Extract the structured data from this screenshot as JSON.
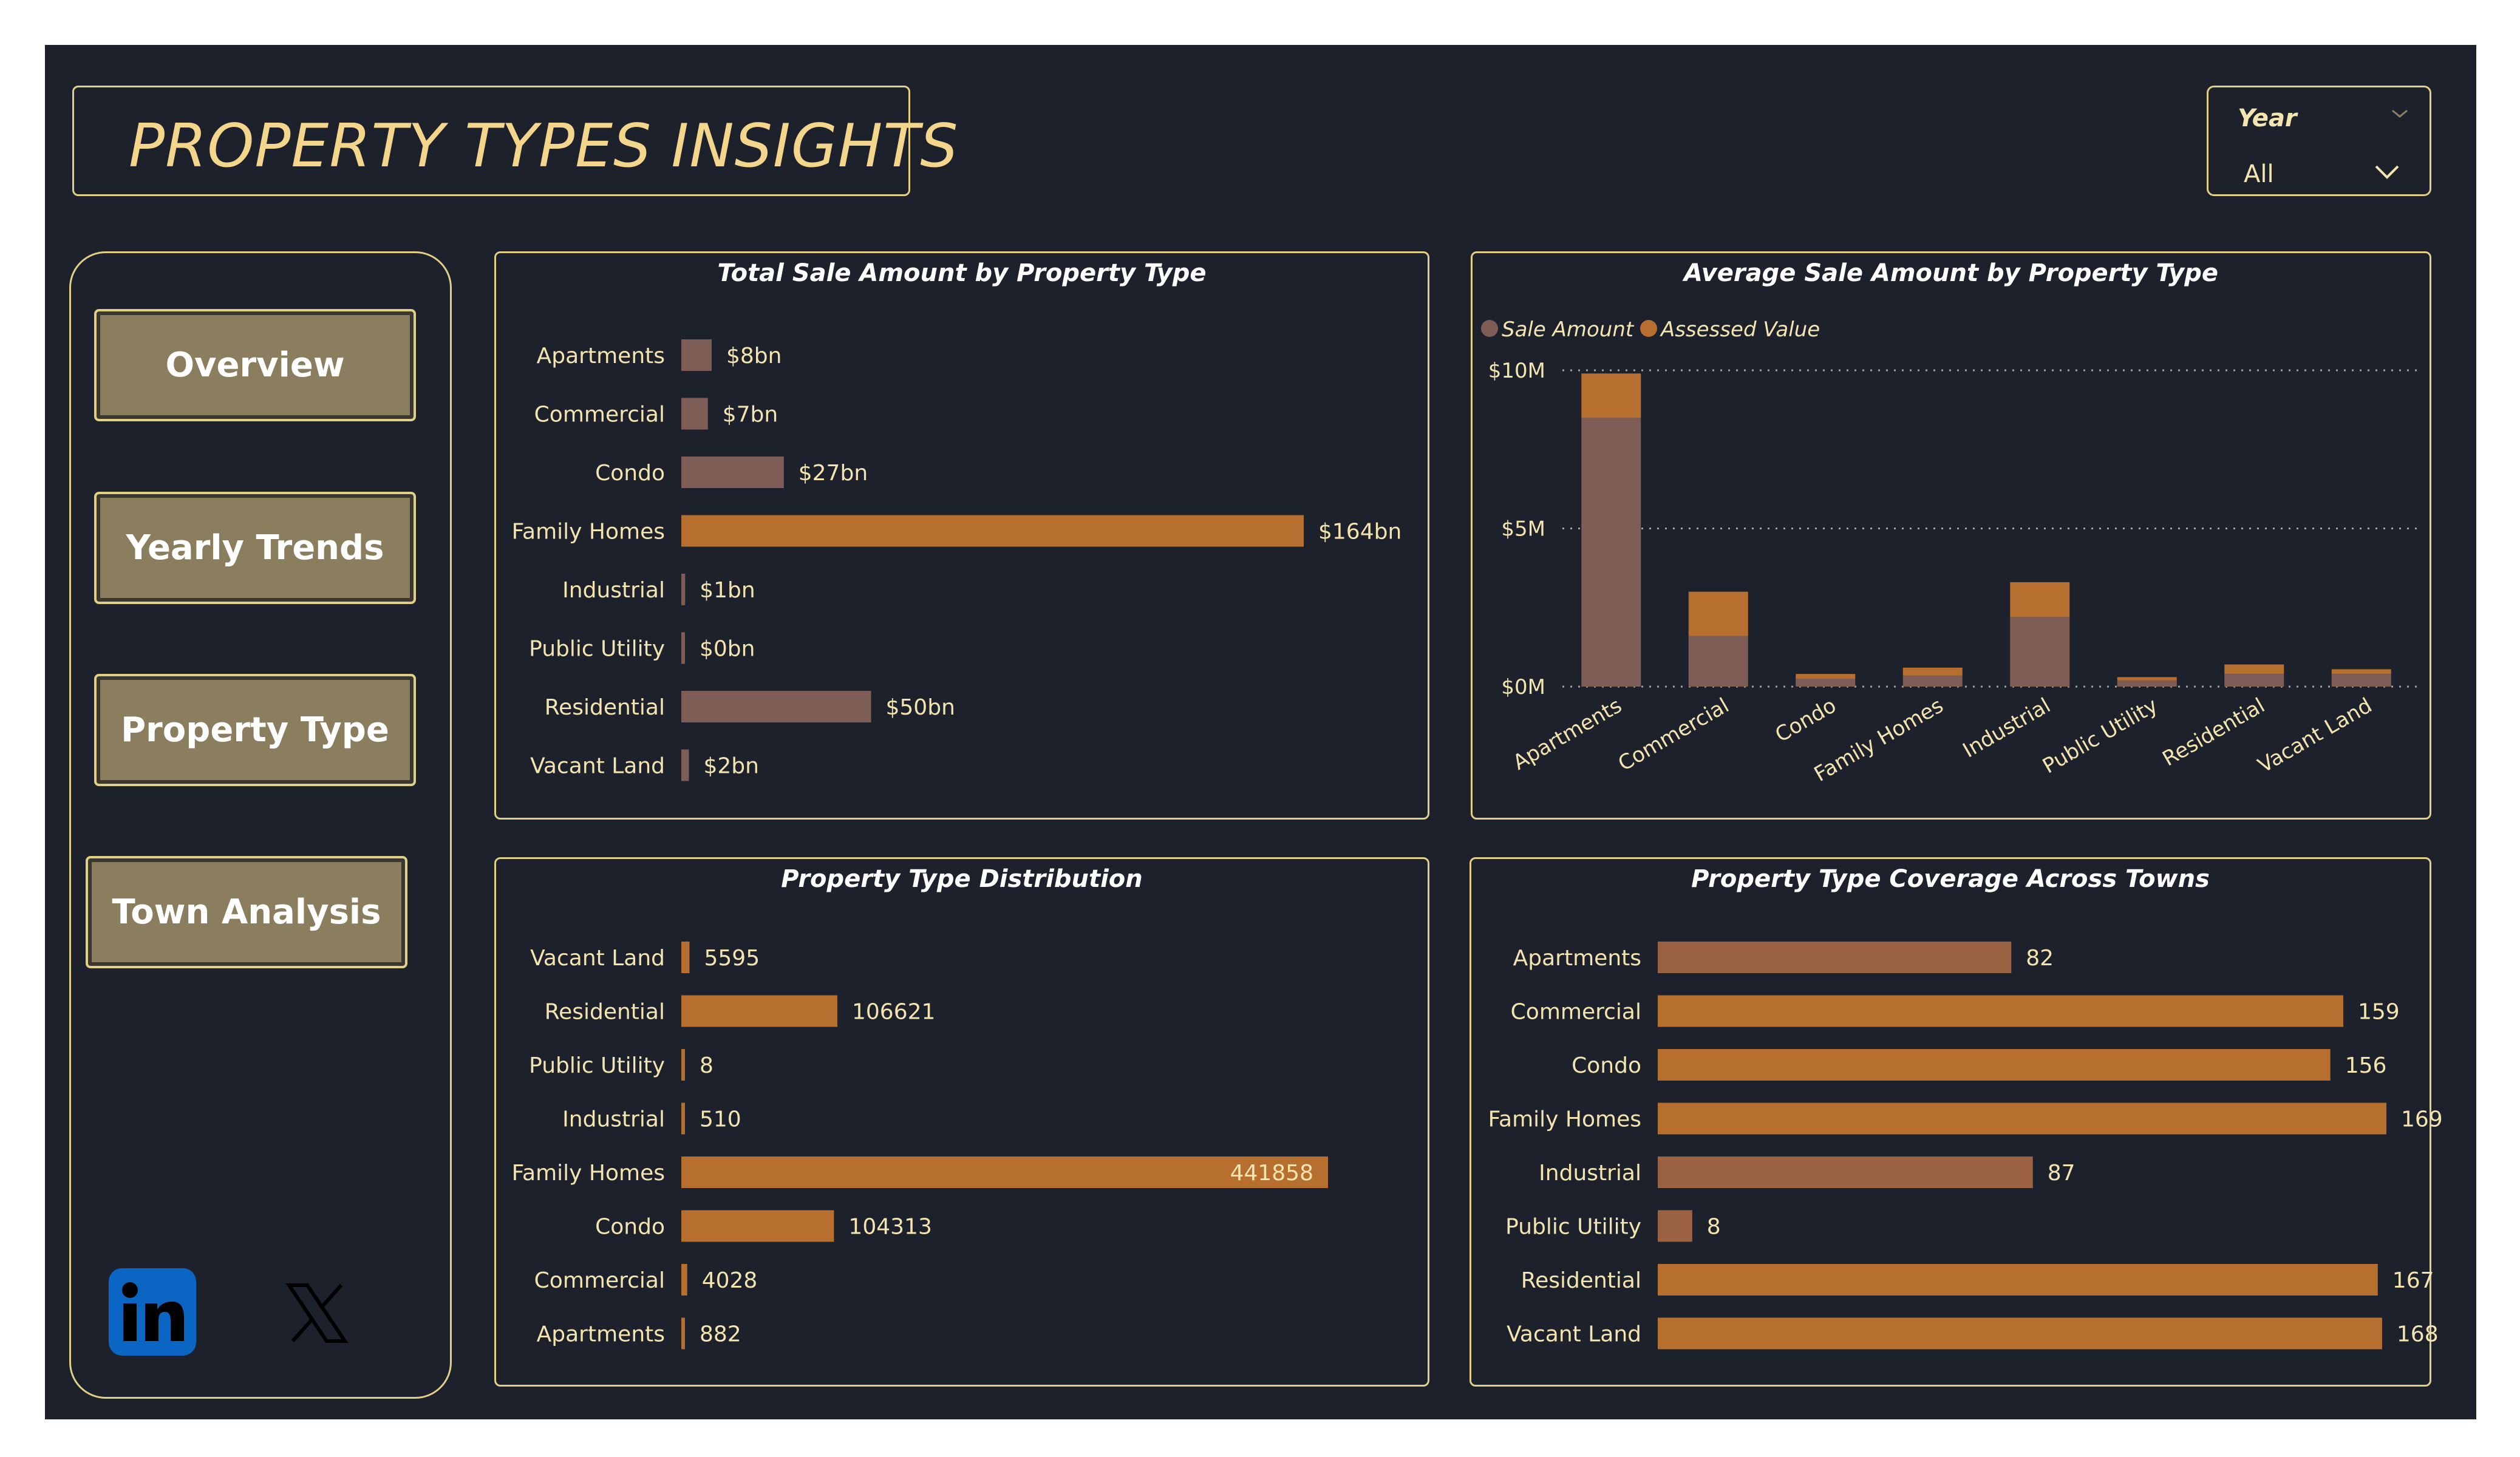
{
  "page": {
    "title": "PROPERTY TYPES INSIGHTS"
  },
  "slicer": {
    "label": "Year",
    "value": "All"
  },
  "nav": {
    "items": [
      {
        "label": "Overview"
      },
      {
        "label": "Yearly Trends"
      },
      {
        "label": "Property Type"
      },
      {
        "label": "Town Analysis"
      }
    ]
  },
  "social": {
    "icons": [
      "linkedin-icon",
      "x-icon"
    ]
  },
  "colors": {
    "background": "#1d212b",
    "border": "#e2cf86",
    "title": "#f3d68c",
    "sale_amount": "#7e5d57",
    "assessed_value": "#b76f2f",
    "bar_highlight": "#b76f2f",
    "axis_label": "#f4e5b0"
  },
  "chart_data": [
    {
      "type": "bar",
      "orientation": "horizontal",
      "title": "Total Sale Amount by Property Type",
      "categories": [
        "Apartments",
        "Commercial",
        "Condo",
        "Family Homes",
        "Industrial",
        "Public Utility",
        "Residential",
        "Vacant Land"
      ],
      "values": [
        8,
        7,
        27,
        164,
        1,
        0,
        50,
        2
      ],
      "data_labels": [
        "$8bn",
        "$7bn",
        "$27bn",
        "$164bn",
        "$1bn",
        "$0bn",
        "$50bn",
        "$2bn"
      ],
      "unit": "bn"
    },
    {
      "type": "bar",
      "orientation": "vertical",
      "stacked": true,
      "title": "Average Sale Amount by Property Type",
      "categories": [
        "Apartments",
        "Commercial",
        "Condo",
        "Family Homes",
        "Industrial",
        "Public Utility",
        "Residential",
        "Vacant Land"
      ],
      "series": [
        {
          "name": "Sale Amount",
          "values": [
            8.5,
            1.6,
            0.25,
            0.35,
            2.2,
            0.2,
            0.4,
            0.4
          ]
        },
        {
          "name": "Assessed Value",
          "values": [
            1.4,
            1.4,
            0.15,
            0.25,
            1.1,
            0.1,
            0.3,
            0.15
          ]
        }
      ],
      "ylim": [
        0,
        10
      ],
      "yticks": [
        "$0M",
        "$5M",
        "$10M"
      ],
      "legend": "top-left",
      "grid": true
    },
    {
      "type": "bar",
      "orientation": "horizontal",
      "title": "Property Type Distribution",
      "categories": [
        "Vacant Land",
        "Residential",
        "Public Utility",
        "Industrial",
        "Family Homes",
        "Condo",
        "Commercial",
        "Apartments"
      ],
      "values": [
        5595,
        106621,
        8,
        510,
        441858,
        104313,
        4028,
        882
      ],
      "data_labels": [
        "5595",
        "106621",
        "8",
        "510",
        "441858",
        "104313",
        "4028",
        "882"
      ]
    },
    {
      "type": "bar",
      "orientation": "horizontal",
      "title": "Property Type Coverage Across Towns",
      "categories": [
        "Apartments",
        "Commercial",
        "Condo",
        "Family Homes",
        "Industrial",
        "Public Utility",
        "Residential",
        "Vacant Land"
      ],
      "values": [
        82,
        159,
        156,
        169,
        87,
        8,
        167,
        168
      ],
      "data_labels": [
        "82",
        "159",
        "156",
        "169",
        "87",
        "8",
        "167",
        "168"
      ]
    }
  ]
}
